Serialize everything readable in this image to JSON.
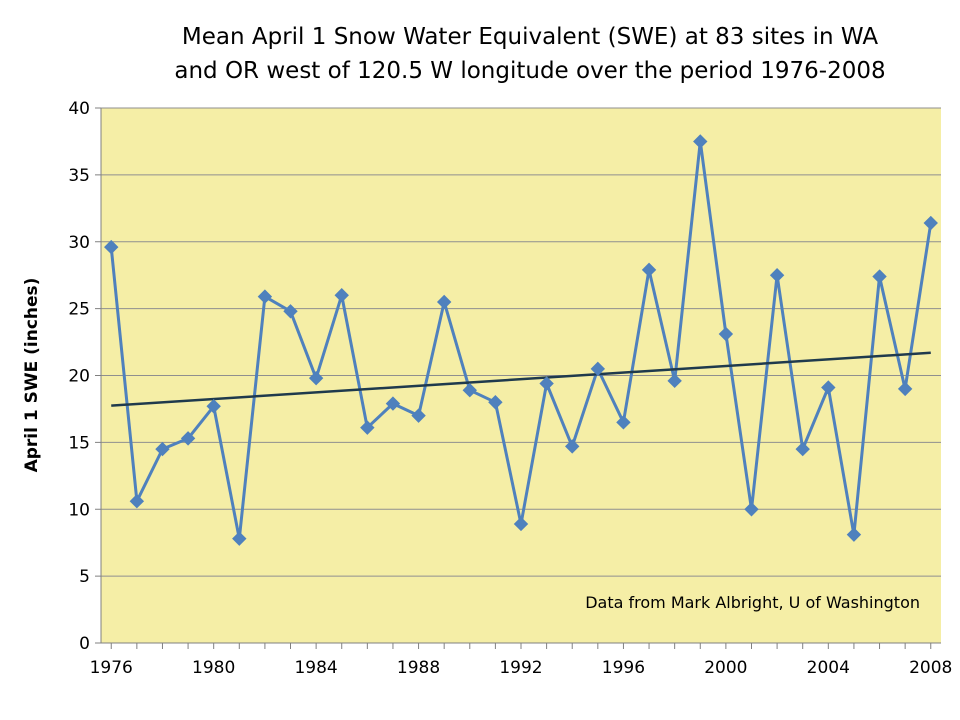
{
  "chart_data": {
    "type": "line",
    "title_lines": [
      "Mean April 1 Snow Water Equivalent (SWE) at 83 sites in WA",
      "and OR west of 120.5 W longitude over the period 1976-2008"
    ],
    "xlabel": "",
    "ylabel": "April 1 SWE (inches)",
    "xlim": [
      1975.6,
      2008.4
    ],
    "ylim": [
      0,
      40
    ],
    "y_ticks": [
      0,
      5,
      10,
      15,
      20,
      25,
      30,
      35,
      40
    ],
    "x_ticks": [
      1976,
      1980,
      1984,
      1988,
      1992,
      1996,
      2000,
      2004,
      2008
    ],
    "grid": true,
    "annotation": "Data from Mark Albright, U of Washington",
    "series": [
      {
        "name": "Mean April 1 SWE",
        "x": [
          1976,
          1977,
          1978,
          1979,
          1980,
          1981,
          1982,
          1983,
          1984,
          1985,
          1986,
          1987,
          1988,
          1989,
          1990,
          1991,
          1992,
          1993,
          1994,
          1995,
          1996,
          1997,
          1998,
          1999,
          2000,
          2001,
          2002,
          2003,
          2004,
          2005,
          2006,
          2007,
          2008
        ],
        "values": [
          29.6,
          10.6,
          14.5,
          15.3,
          17.7,
          7.8,
          25.9,
          24.8,
          19.8,
          26.0,
          16.1,
          17.9,
          17.0,
          25.5,
          18.9,
          18.0,
          8.9,
          19.4,
          14.7,
          20.5,
          16.5,
          27.9,
          19.6,
          37.5,
          23.1,
          10.0,
          27.5,
          14.5,
          19.1,
          8.1,
          27.4,
          19.0,
          31.4
        ],
        "color": "#4f81bd"
      },
      {
        "name": "Linear trend",
        "x": [
          1976,
          2008
        ],
        "values": [
          17.75,
          21.7
        ],
        "color": "#1f3a4d"
      }
    ],
    "colors": {
      "plot_background": "#f5eea6",
      "gridline": "#8f8f8f",
      "axis": "#808080"
    }
  }
}
